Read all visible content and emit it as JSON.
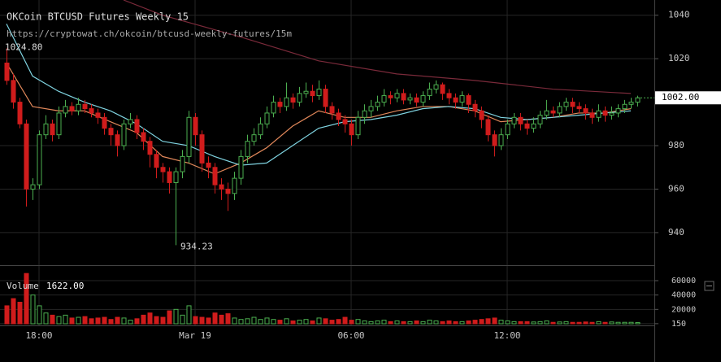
{
  "chart_data": {
    "type": "candlestick",
    "title": "OKCoin BTCUSD Futures Weekly 15",
    "subtitle": "https://cryptowat.ch/okcoin/btcusd-weekly-futures/15m",
    "categories": [
      null,
      null,
      null,
      null,
      null,
      "18:00",
      null,
      null,
      null,
      null,
      null,
      null,
      null,
      null,
      null,
      null,
      null,
      null,
      null,
      null,
      null,
      null,
      null,
      null,
      null,
      null,
      null,
      null,
      null,
      "Mar 19",
      null,
      null,
      null,
      null,
      null,
      null,
      null,
      null,
      null,
      null,
      null,
      null,
      null,
      null,
      null,
      null,
      null,
      null,
      null,
      null,
      null,
      null,
      null,
      "06:00",
      null,
      null,
      null,
      null,
      null,
      null,
      null,
      null,
      null,
      null,
      null,
      null,
      null,
      null,
      null,
      null,
      null,
      null,
      null,
      null,
      null,
      null,
      null,
      "12:00",
      null,
      null,
      null,
      null,
      null,
      null,
      null,
      null,
      null,
      null,
      null,
      null,
      null,
      null,
      null,
      null,
      null,
      null,
      null,
      null
    ],
    "open": [
      1018,
      1010,
      1000,
      990,
      960,
      962,
      985,
      990,
      985,
      995,
      998,
      996,
      999,
      997,
      995,
      993,
      988,
      985,
      980,
      990,
      992,
      986,
      982,
      976,
      970,
      968,
      963,
      968,
      975,
      993,
      985,
      972,
      970,
      962,
      960,
      958,
      965,
      975,
      982,
      985,
      990,
      995,
      1000,
      998,
      1002,
      1000,
      1004,
      1005,
      1003,
      1006,
      998,
      995,
      992,
      990,
      985,
      993,
      996,
      998,
      1000,
      1003,
      1002,
      1004,
      1001,
      1002,
      1000,
      1003,
      1006,
      1008,
      1004,
      1002,
      1000,
      1003,
      999,
      996,
      992,
      985,
      980,
      985,
      990,
      993,
      990,
      988,
      990,
      994,
      996,
      995,
      998,
      1000,
      998,
      997,
      995,
      993,
      996,
      994,
      995,
      997,
      999,
      1000
    ],
    "high": [
      1024.8,
      1013,
      1002,
      992,
      965,
      987,
      994,
      992,
      998,
      1001,
      1000,
      1002,
      1001,
      999,
      997,
      995,
      990,
      987,
      992,
      995,
      994,
      988,
      984,
      978,
      972,
      970,
      970,
      978,
      996,
      995,
      987,
      975,
      972,
      965,
      963,
      968,
      978,
      985,
      988,
      993,
      998,
      1003,
      1002,
      1009,
      1004,
      1007,
      1009,
      1008,
      1010,
      1008,
      1000,
      997,
      994,
      992,
      996,
      999,
      1001,
      1003,
      1006,
      1005,
      1006,
      1006,
      1004,
      1004,
      1005,
      1009,
      1010,
      1009,
      1006,
      1004,
      1005,
      1004,
      1001,
      998,
      994,
      987,
      988,
      992,
      995,
      995,
      992,
      993,
      996,
      1001,
      998,
      1000,
      1002,
      1002,
      1000,
      999,
      997,
      999,
      998,
      998,
      999,
      1001,
      1002,
      1003
    ],
    "low": [
      1008,
      997,
      988,
      952,
      955,
      960,
      983,
      982,
      983,
      993,
      994,
      994,
      995,
      993,
      990,
      985,
      980,
      975,
      978,
      988,
      983,
      978,
      970,
      965,
      963,
      958,
      934.23,
      965,
      972,
      980,
      968,
      965,
      958,
      955,
      950,
      955,
      962,
      972,
      980,
      983,
      988,
      993,
      995,
      996,
      997,
      998,
      1002,
      1000,
      1001,
      995,
      992,
      989,
      986,
      980,
      983,
      990,
      993,
      996,
      998,
      999,
      1000,
      999,
      999,
      998,
      998,
      1001,
      1004,
      1001,
      999,
      997,
      998,
      995,
      993,
      988,
      982,
      975,
      978,
      983,
      988,
      987,
      985,
      986,
      988,
      992,
      993,
      993,
      996,
      995,
      995,
      992,
      990,
      991,
      991,
      992,
      993,
      995,
      997,
      998
    ],
    "close": [
      1010,
      1000,
      990,
      960,
      962,
      985,
      990,
      985,
      995,
      998,
      996,
      999,
      997,
      995,
      993,
      988,
      985,
      980,
      990,
      992,
      986,
      982,
      976,
      970,
      968,
      963,
      968,
      975,
      993,
      985,
      972,
      970,
      962,
      960,
      958,
      965,
      975,
      982,
      985,
      990,
      995,
      1000,
      998,
      1002,
      1000,
      1004,
      1005,
      1003,
      1006,
      998,
      995,
      992,
      990,
      985,
      993,
      996,
      998,
      1000,
      1003,
      1002,
      1004,
      1001,
      1002,
      1000,
      1003,
      1006,
      1008,
      1004,
      1002,
      1000,
      1003,
      999,
      996,
      992,
      985,
      980,
      985,
      990,
      993,
      990,
      988,
      990,
      994,
      996,
      995,
      998,
      1000,
      998,
      997,
      995,
      993,
      996,
      994,
      995,
      997,
      999,
      1000,
      1002
    ],
    "up_color": "#4caf50",
    "down_color": "#d01c1c",
    "high_label": "1024.80",
    "low_label": "934.23",
    "last_label": "1002.00",
    "ylim": [
      925,
      1047
    ],
    "yticks": [
      940,
      960,
      980,
      1020,
      1040
    ],
    "grid": true,
    "overlays": [
      {
        "color": "#e0875a",
        "x": [
          0,
          4,
          8,
          12,
          16,
          20,
          24,
          28,
          32,
          36,
          40,
          44,
          48,
          52,
          56,
          60,
          64,
          68,
          72,
          76,
          80,
          84,
          88,
          92,
          96
        ],
        "values": [
          1018,
          998,
          996,
          996,
          991,
          986,
          975,
          972,
          967,
          972,
          979,
          989,
          996,
          993,
          993,
          996,
          998,
          998,
          996,
          991,
          992,
          993,
          995,
          995,
          997
        ]
      },
      {
        "color": "#7fd3e0",
        "x": [
          0,
          4,
          8,
          12,
          16,
          20,
          24,
          28,
          32,
          36,
          40,
          44,
          48,
          52,
          56,
          60,
          64,
          68,
          72,
          76,
          80,
          84,
          88,
          92,
          96
        ],
        "values": [
          1036,
          1012,
          1005,
          1000,
          996,
          990,
          982,
          980,
          975,
          971,
          972,
          980,
          988,
          991,
          992,
          994,
          997,
          998,
          997,
          993,
          992,
          993,
          994,
          995,
          996
        ]
      },
      {
        "color": "#7a2a3a",
        "x": [
          18,
          24,
          36,
          48,
          60,
          72,
          84,
          96
        ],
        "values": [
          1047,
          1040,
          1030,
          1019,
          1013,
          1010,
          1006,
          1004
        ]
      }
    ],
    "volume": {
      "title": "Volume",
      "last_label": "1622.00",
      "ylim": [
        0,
        77000
      ],
      "yticks": [
        150,
        20000,
        40000,
        60000
      ],
      "values": [
        25000,
        35000,
        30000,
        70000,
        40000,
        25000,
        15000,
        12000,
        10000,
        12000,
        8000,
        9000,
        10000,
        7000,
        8000,
        9000,
        6000,
        9000,
        8000,
        5000,
        7000,
        12000,
        15000,
        10000,
        9000,
        18000,
        20000,
        12000,
        25000,
        10000,
        9000,
        8000,
        15000,
        12000,
        14000,
        8000,
        6000,
        7000,
        9000,
        6000,
        8000,
        6000,
        5000,
        7000,
        4000,
        5000,
        6000,
        4000,
        8000,
        7000,
        5000,
        6000,
        9000,
        5000,
        6000,
        4000,
        3000,
        4000,
        5000,
        3000,
        4000,
        3000,
        3000,
        4000,
        3000,
        5000,
        4000,
        3000,
        4000,
        3000,
        3000,
        4000,
        5000,
        6000,
        7000,
        8000,
        5000,
        4000,
        3000,
        3000,
        3000,
        2500,
        3000,
        4000,
        2000,
        2500,
        3000,
        2000,
        2000,
        2500,
        2000,
        3000,
        2000,
        2500,
        2000,
        2000,
        2000,
        1622
      ]
    }
  }
}
